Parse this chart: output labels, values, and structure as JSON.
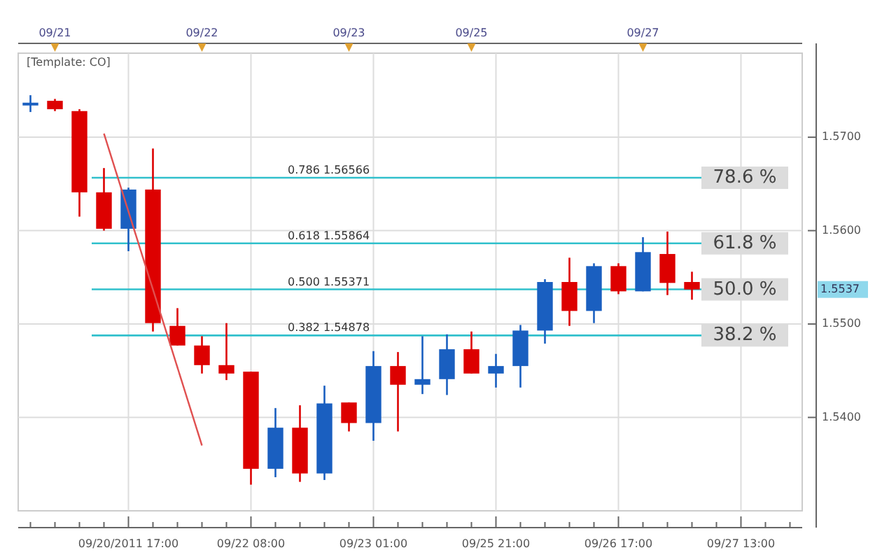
{
  "chart_data": {
    "type": "candlestick",
    "categories": [
      null,
      null,
      null,
      null,
      "09/20/2011 17:00",
      null,
      null,
      null,
      null,
      "09/22 08:00",
      null,
      null,
      null,
      null,
      "09/23 01:00",
      null,
      null,
      null,
      null,
      "09/25 21:00",
      null,
      null,
      null,
      null,
      "09/26 17:00",
      null,
      null,
      null,
      null,
      "09/27 13:00",
      null,
      null
    ],
    "ohlc": [
      [
        1.5734,
        1.5745,
        1.5727,
        1.5737
      ],
      [
        1.5739,
        1.5741,
        1.5728,
        1.573
      ],
      [
        1.5728,
        1.573,
        1.5615,
        1.5641
      ],
      [
        1.5641,
        1.5667,
        1.56,
        1.5602
      ],
      [
        1.5602,
        1.5646,
        1.5578,
        1.5644
      ],
      [
        1.5644,
        1.5688,
        1.5492,
        1.5501
      ],
      [
        1.5498,
        1.5517,
        1.5477,
        1.5477
      ],
      [
        1.5477,
        1.5487,
        1.5447,
        1.5456
      ],
      [
        1.5456,
        1.5501,
        1.544,
        1.5447
      ],
      [
        1.5449,
        1.5449,
        1.5328,
        1.5345
      ],
      [
        1.5345,
        1.541,
        1.5336,
        1.5389
      ],
      [
        1.5389,
        1.5413,
        1.5331,
        1.534
      ],
      [
        1.534,
        1.5434,
        1.5333,
        1.5415
      ],
      [
        1.5416,
        1.5416,
        1.5385,
        1.5394
      ],
      [
        1.5394,
        1.5471,
        1.5375,
        1.5455
      ],
      [
        1.5455,
        1.547,
        1.5385,
        1.5435
      ],
      [
        1.5435,
        1.5487,
        1.5425,
        1.5441
      ],
      [
        1.5441,
        1.5489,
        1.5424,
        1.5473
      ],
      [
        1.5473,
        1.5492,
        1.5447,
        1.5447
      ],
      [
        1.5447,
        1.5468,
        1.5432,
        1.5455
      ],
      [
        1.5455,
        1.5499,
        1.5432,
        1.5493
      ],
      [
        1.5493,
        1.5548,
        1.5479,
        1.5545
      ],
      [
        1.5545,
        1.5571,
        1.5498,
        1.5514
      ],
      [
        1.5514,
        1.5565,
        1.5501,
        1.5562
      ],
      [
        1.5562,
        1.5565,
        1.5532,
        1.5535
      ],
      [
        1.5535,
        1.5593,
        1.5535,
        1.5577
      ],
      [
        1.5575,
        1.5599,
        1.5531,
        1.5544
      ],
      [
        1.5545,
        1.5556,
        1.5526,
        1.5537
      ],
      null,
      null,
      null,
      null
    ],
    "colors": [
      "#1a5fc0",
      "#dd0000",
      "#dd0000",
      "#dd0000",
      "#1a5fc0",
      "#dd0000",
      "#dd0000",
      "#dd0000",
      "#dd0000",
      "#dd0000",
      "#1a5fc0",
      "#dd0000",
      "#1a5fc0",
      "#dd0000",
      "#1a5fc0",
      "#dd0000",
      "#1a5fc0",
      "#1a5fc0",
      "#dd0000",
      "#1a5fc0",
      "#1a5fc0",
      "#1a5fc0",
      "#dd0000",
      "#1a5fc0",
      "#dd0000",
      "#1a5fc0",
      "#dd0000",
      "#dd0000",
      null,
      null,
      null,
      null
    ],
    "series": [
      {
        "type": "line",
        "color": "#e05050",
        "values": [
          null,
          null,
          null,
          1.5704,
          null,
          null,
          null,
          1.537,
          null,
          null,
          null,
          null,
          null,
          null,
          null,
          null,
          null,
          null,
          null,
          null,
          null,
          null,
          null,
          null,
          null,
          null,
          null,
          null,
          null,
          null,
          null,
          null
        ]
      }
    ],
    "ylim": [
      1.53,
      1.579
    ],
    "yticks": [
      {
        "value": 1.54,
        "label": "1.5400"
      },
      {
        "value": 1.55,
        "label": "1.5500"
      },
      {
        "value": 1.56,
        "label": "1.5600"
      },
      {
        "value": 1.57,
        "label": "1.5700"
      }
    ],
    "ref_lines": [
      {
        "axis": "y",
        "value": 1.56566,
        "label": "0.786 1.56566",
        "color": "#30c0cc"
      },
      {
        "axis": "y",
        "value": 1.55864,
        "label": "0.618 1.55864",
        "color": "#30c0cc"
      },
      {
        "axis": "y",
        "value": 1.55371,
        "label": "0.500 1.55371",
        "color": "#30c0cc"
      },
      {
        "axis": "y",
        "value": 1.54878,
        "label": "0.382 1.54878",
        "color": "#30c0cc"
      }
    ],
    "annotations": [
      "[Template: CO]",
      "09/21",
      "09/22",
      "09/23",
      "09/25",
      "09/27",
      "1.5537",
      {
        "text": "78.6 %",
        "y": 1.56566
      },
      {
        "text": "61.8 %",
        "y": 1.55864
      },
      {
        "text": "50.0 %",
        "y": 1.55371
      },
      {
        "text": "38.2 %",
        "y": 1.54878
      }
    ],
    "grid": true,
    "marker": "none"
  }
}
